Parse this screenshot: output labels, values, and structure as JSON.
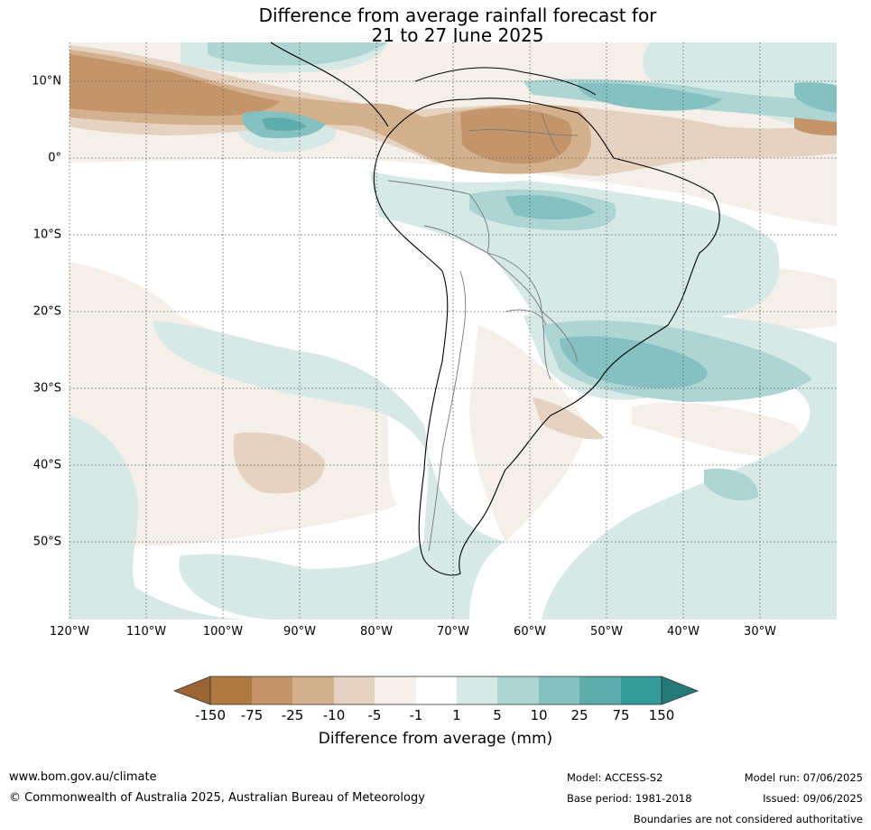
{
  "title_line1": "Difference from average rainfall forecast for",
  "title_line2": "21 to 27 June 2025",
  "lon_labels": [
    "120°W",
    "110°W",
    "100°W",
    "90°W",
    "80°W",
    "70°W",
    "60°W",
    "50°W",
    "40°W",
    "30°W"
  ],
  "lat_labels": [
    "10°N",
    "0°",
    "10°S",
    "20°S",
    "30°S",
    "40°S",
    "50°S"
  ],
  "legend": {
    "title": "Difference from average (mm)",
    "ticks": [
      "-150",
      "-75",
      "-25",
      "-10",
      "-5",
      "-1",
      "1",
      "5",
      "10",
      "25",
      "75",
      "150"
    ],
    "colors": [
      "#9c6434",
      "#af7a41",
      "#c4956b",
      "#d4b18e",
      "#e6d2c0",
      "#f4efe9",
      "#ffffff",
      "#d6e9e6",
      "#acd5d3",
      "#84c1c0",
      "#5eadac",
      "#349b98",
      "#237a78"
    ]
  },
  "footer": {
    "website": "www.bom.gov.au/climate",
    "copyright": "© Commonwealth of Australia 2025, Australian Bureau of Meteorology",
    "model": "Model: ACCESS-S2",
    "base_period": "Base period: 1981-2018",
    "model_run": "Model run: 07/06/2025",
    "issued": "Issued: 09/06/2025",
    "disclaimer": "Boundaries are not considered authoritative"
  }
}
